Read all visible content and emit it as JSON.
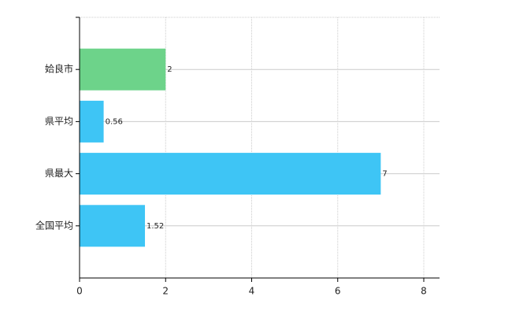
{
  "chart_data": {
    "type": "bar",
    "orientation": "horizontal",
    "categories": [
      "姶良市",
      "県平均",
      "県最大",
      "全国平均"
    ],
    "values": [
      2,
      0.56,
      7,
      1.52
    ],
    "colors": [
      "#6dd38a",
      "#3ec5f5",
      "#3ec5f5",
      "#3ec5f5"
    ],
    "xlim": [
      0,
      8
    ],
    "xticks": [
      0,
      2,
      4,
      6,
      8
    ],
    "grid": true
  }
}
